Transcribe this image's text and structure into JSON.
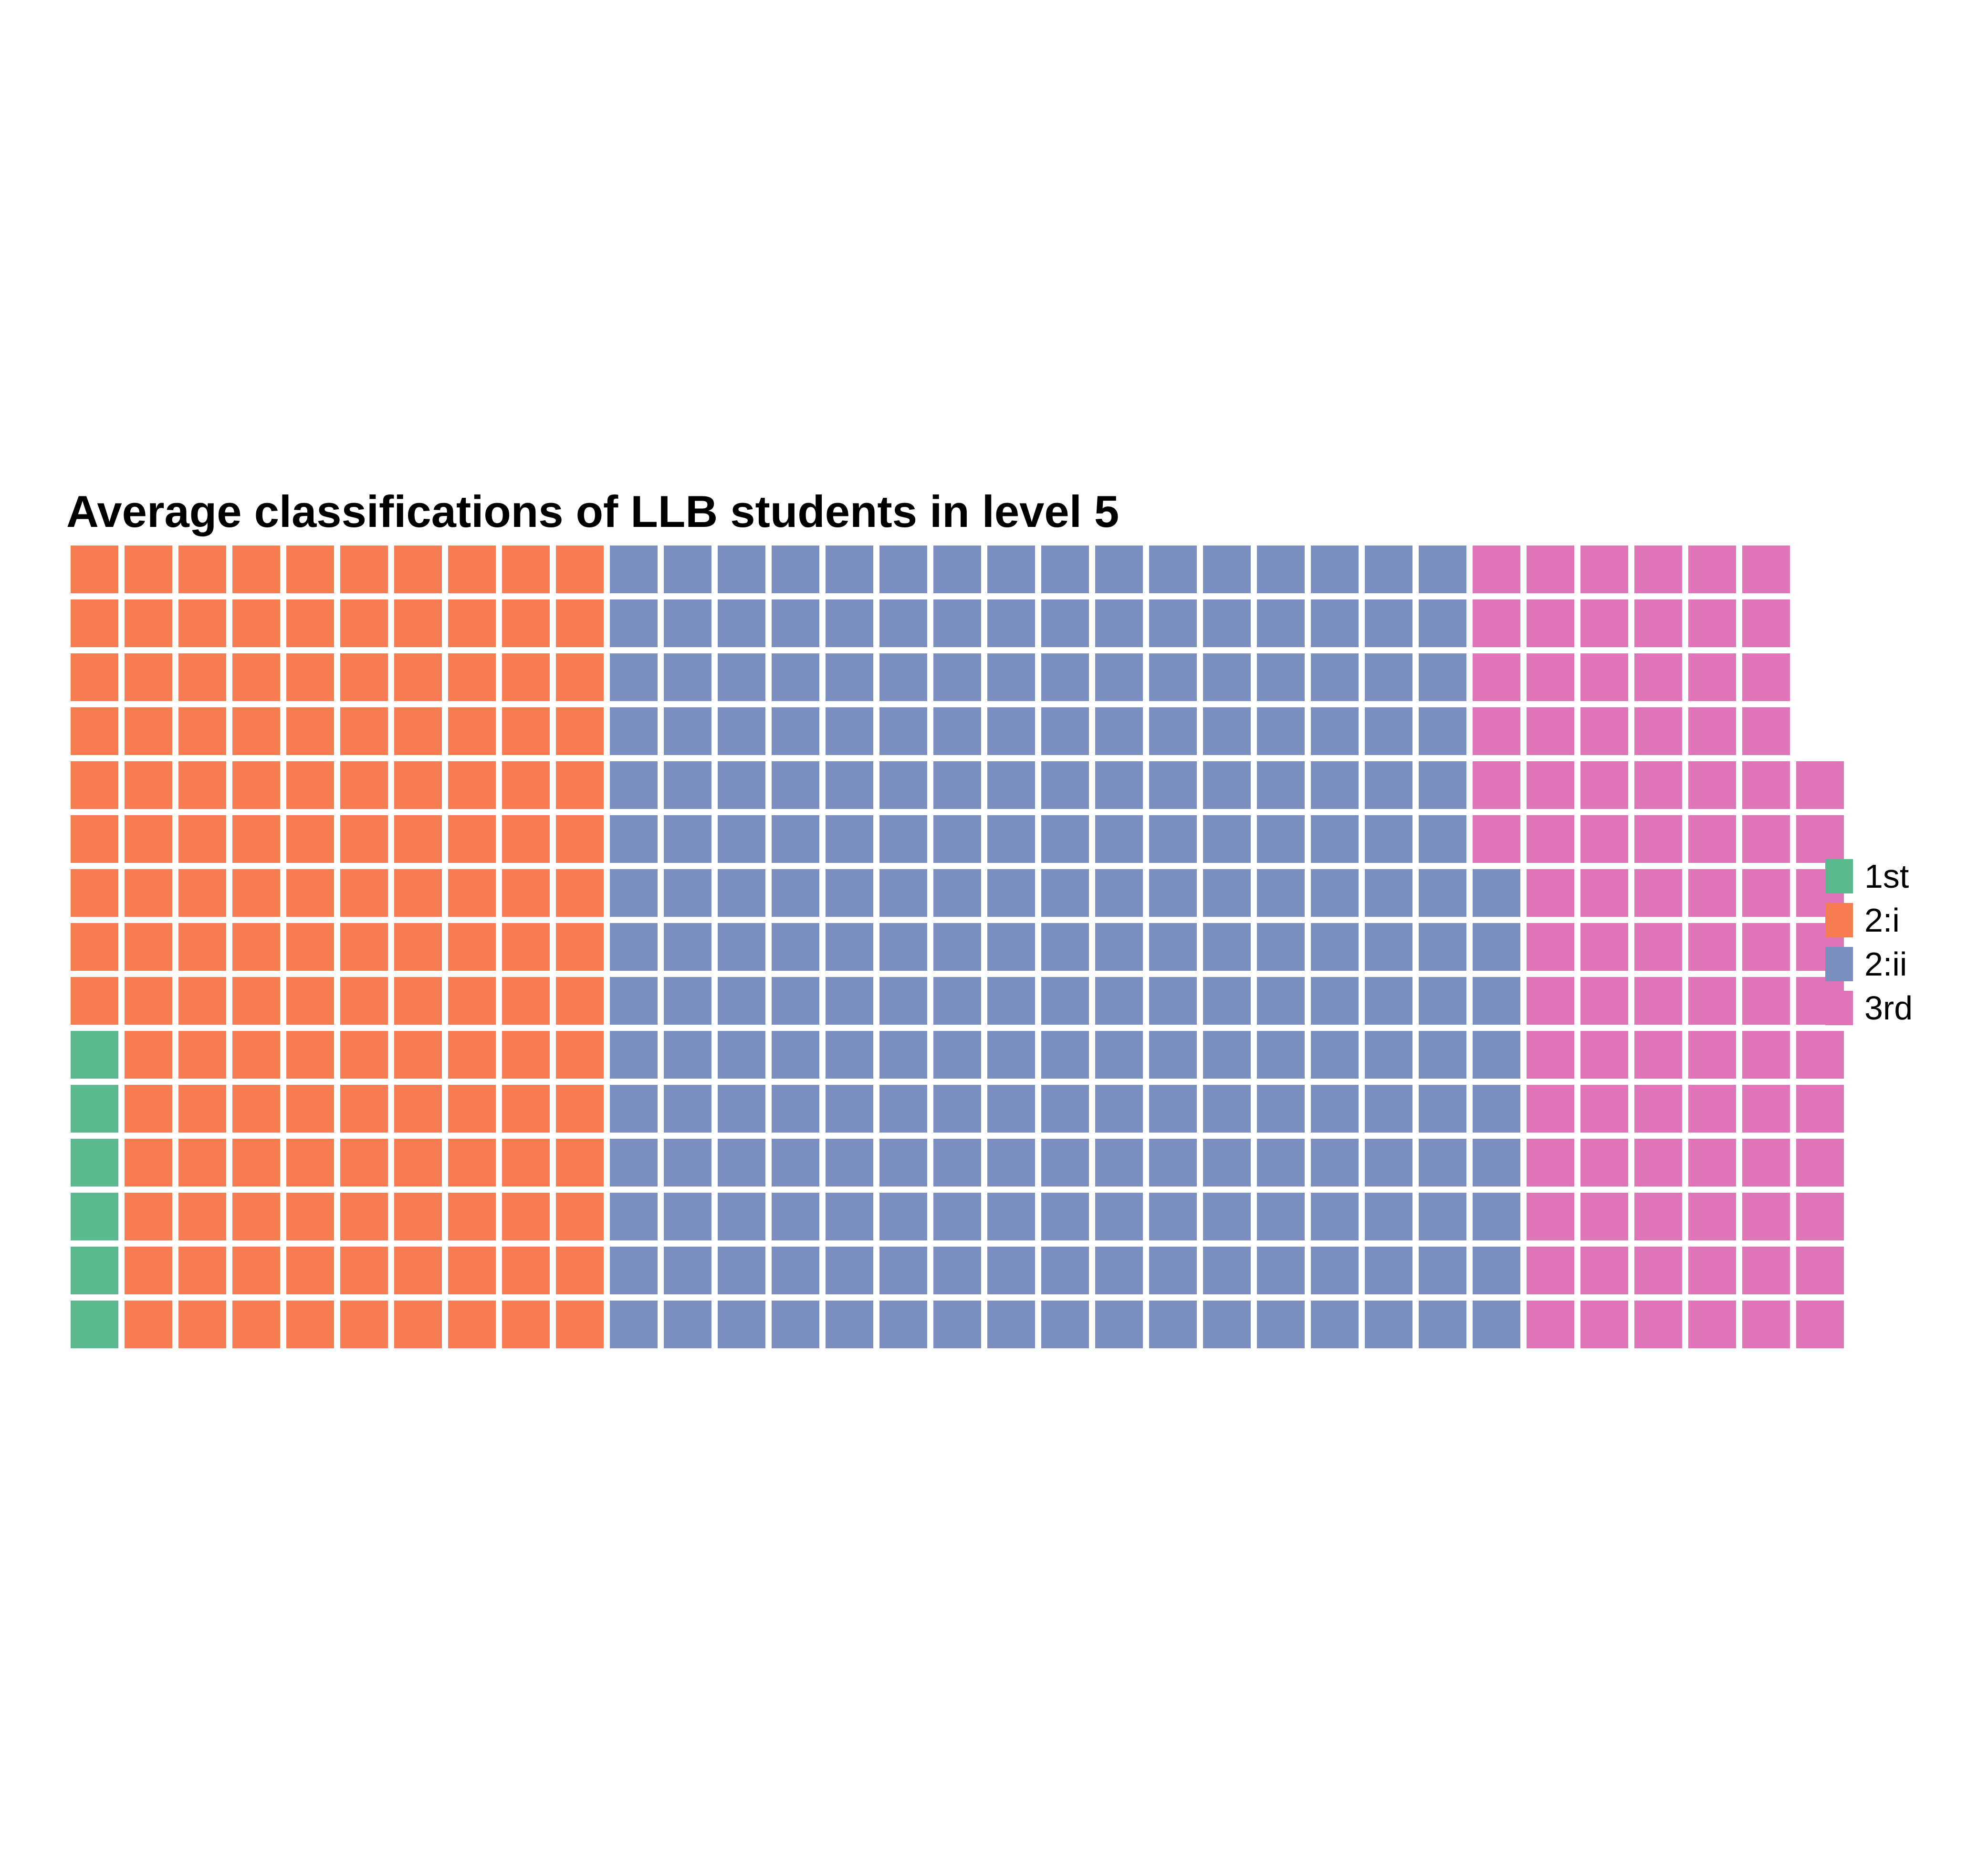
{
  "chart_data": {
    "type": "waffle",
    "title": "Average classifications of LLB students in level 5",
    "rows": 15,
    "fill_order": "column-wise, bottom to top, left to right",
    "categories": [
      "1st",
      "2:i",
      "2:ii",
      "3rd"
    ],
    "values": [
      6,
      144,
      249,
      92
    ],
    "colors": [
      "#5BB88F",
      "#F87C51",
      "#7B8EC0",
      "#E074B8"
    ],
    "legend_position": "right"
  }
}
